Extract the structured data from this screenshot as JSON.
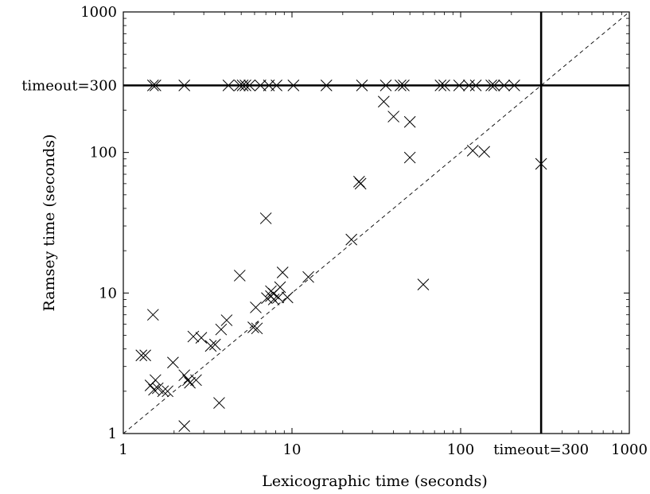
{
  "chart_data": {
    "type": "scatter",
    "title": "",
    "xlabel": "Lexicographic time (seconds)",
    "ylabel": "Ramsey time (seconds)",
    "xscale": "log",
    "yscale": "log",
    "xlim": [
      1,
      1000
    ],
    "ylim": [
      1,
      1000
    ],
    "grid": false,
    "legend": "none",
    "xticks": [
      {
        "value": 1,
        "label": "1"
      },
      {
        "value": 10,
        "label": "10"
      },
      {
        "value": 100,
        "label": "100"
      },
      {
        "value": 300,
        "label": "timeout=300"
      },
      {
        "value": 1000,
        "label": "1000"
      }
    ],
    "yticks": [
      {
        "value": 1,
        "label": "1"
      },
      {
        "value": 10,
        "label": "10"
      },
      {
        "value": 100,
        "label": "100"
      },
      {
        "value": 300,
        "label": "timeout=300"
      },
      {
        "value": 1000,
        "label": "1000"
      }
    ],
    "timeout": 300,
    "diagonal": true,
    "marker": "x",
    "points": [
      [
        1.5,
        300
      ],
      [
        1.55,
        300
      ],
      [
        2.3,
        300
      ],
      [
        4.2,
        300
      ],
      [
        4.9,
        300
      ],
      [
        5.1,
        300
      ],
      [
        5.3,
        300
      ],
      [
        5.6,
        300
      ],
      [
        6.5,
        300
      ],
      [
        7.3,
        300
      ],
      [
        8.1,
        300
      ],
      [
        10.2,
        300
      ],
      [
        16,
        300
      ],
      [
        26,
        300
      ],
      [
        36,
        300
      ],
      [
        44,
        300
      ],
      [
        46,
        300
      ],
      [
        76,
        300
      ],
      [
        80,
        300
      ],
      [
        98,
        300
      ],
      [
        112,
        300
      ],
      [
        123,
        300
      ],
      [
        152,
        300
      ],
      [
        158,
        300
      ],
      [
        181,
        300
      ],
      [
        208,
        300
      ],
      [
        35,
        230
      ],
      [
        40,
        180
      ],
      [
        50,
        165
      ],
      [
        50,
        92
      ],
      [
        118,
        103
      ],
      [
        138,
        101
      ],
      [
        300,
        83
      ],
      [
        25,
        62
      ],
      [
        25.5,
        60
      ],
      [
        7,
        34
      ],
      [
        22.5,
        24
      ],
      [
        60,
        11.5
      ],
      [
        4.9,
        13.3
      ],
      [
        12.5,
        13
      ],
      [
        8.8,
        14
      ],
      [
        8.5,
        11
      ],
      [
        7.5,
        10.3
      ],
      [
        7.8,
        9.9
      ],
      [
        7.5,
        9.5
      ],
      [
        9.4,
        9.3
      ],
      [
        7.1,
        9.2
      ],
      [
        8.3,
        9.3
      ],
      [
        7.8,
        9.0
      ],
      [
        6.1,
        7.9
      ],
      [
        1.5,
        7
      ],
      [
        4.1,
        6.4
      ],
      [
        3.8,
        5.5
      ],
      [
        5.9,
        5.7
      ],
      [
        6.2,
        5.6
      ],
      [
        3.5,
        4.3
      ],
      [
        2.6,
        4.9
      ],
      [
        2.9,
        4.8
      ],
      [
        3.3,
        4.2
      ],
      [
        1.28,
        3.6
      ],
      [
        1.35,
        3.6
      ],
      [
        1.97,
        3.2
      ],
      [
        2.3,
        2.6
      ],
      [
        2.42,
        2.4
      ],
      [
        2.48,
        2.3
      ],
      [
        2.7,
        2.4
      ],
      [
        1.55,
        2.4
      ],
      [
        1.45,
        2.2
      ],
      [
        1.52,
        2.05
      ],
      [
        1.6,
        2.1
      ],
      [
        1.72,
        2.0
      ],
      [
        1.83,
        2.0
      ],
      [
        3.7,
        1.65
      ],
      [
        2.3,
        1.13
      ]
    ]
  }
}
